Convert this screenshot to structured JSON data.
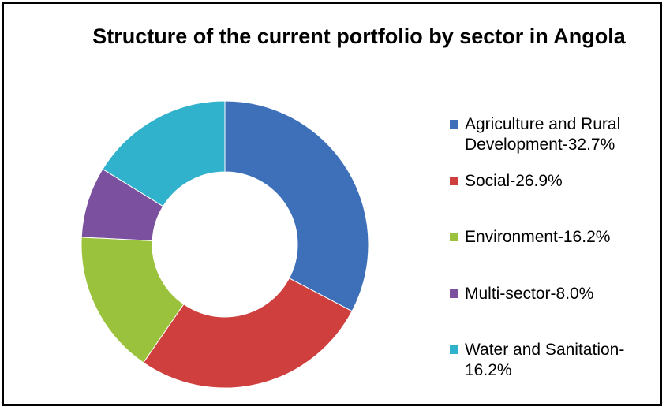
{
  "chart_data": {
    "type": "donut",
    "title": "Structure of the current portfolio by sector in Angola",
    "categories": [
      "Agriculture and Rural Development-32.7%",
      "Social-26.9%",
      "Environment-16.2%",
      "Multi-sector-8.0%",
      "Water and Sanitation-16.2%"
    ],
    "values": [
      32.7,
      26.9,
      16.2,
      8.0,
      16.2
    ],
    "colors": [
      "#3e6fb9",
      "#cf3f3d",
      "#9bc23d",
      "#7b519f",
      "#30b2cc"
    ],
    "legend": "right"
  }
}
